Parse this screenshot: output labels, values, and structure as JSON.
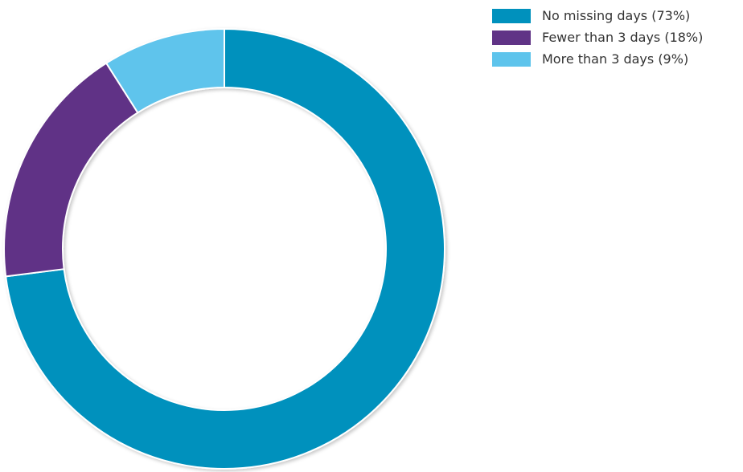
{
  "chart_data": {
    "type": "pie",
    "variant": "donut",
    "categories": [
      "No missing days (73%)",
      "Fewer than 3 days (18%)",
      "More than 3 days (9%)"
    ],
    "values": [
      73,
      18,
      9
    ],
    "colors": [
      "#0091bd",
      "#603386",
      "#5ec4ec"
    ],
    "legend_placement": "top-right"
  }
}
